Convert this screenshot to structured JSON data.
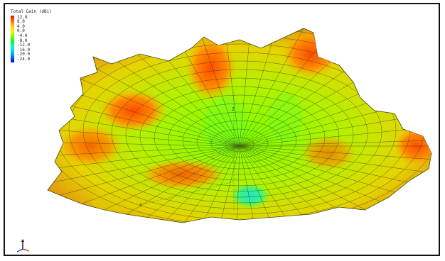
{
  "chart_data": {
    "type": "surface-3d",
    "title": "Total Gain (dBi)",
    "colorbar": {
      "label": "Total Gain (dBi)",
      "ticks": [
        "12.0",
        "8.0",
        "4.0",
        "0.0",
        "-4.0",
        "-8.0",
        "-12.0",
        "-16.0",
        "-20.0",
        "-24.0"
      ],
      "range": [
        -24.0,
        12.0
      ],
      "colors": [
        "#ff0000",
        "#ff6a00",
        "#ffc800",
        "#e6ff00",
        "#7aff00",
        "#00ff2a",
        "#00ffcc",
        "#00c8ff",
        "#006aff",
        "#0000ff"
      ]
    },
    "axes": {
      "labels": [
        "Z",
        "X"
      ]
    },
    "grid": true,
    "legend": "top-left"
  }
}
